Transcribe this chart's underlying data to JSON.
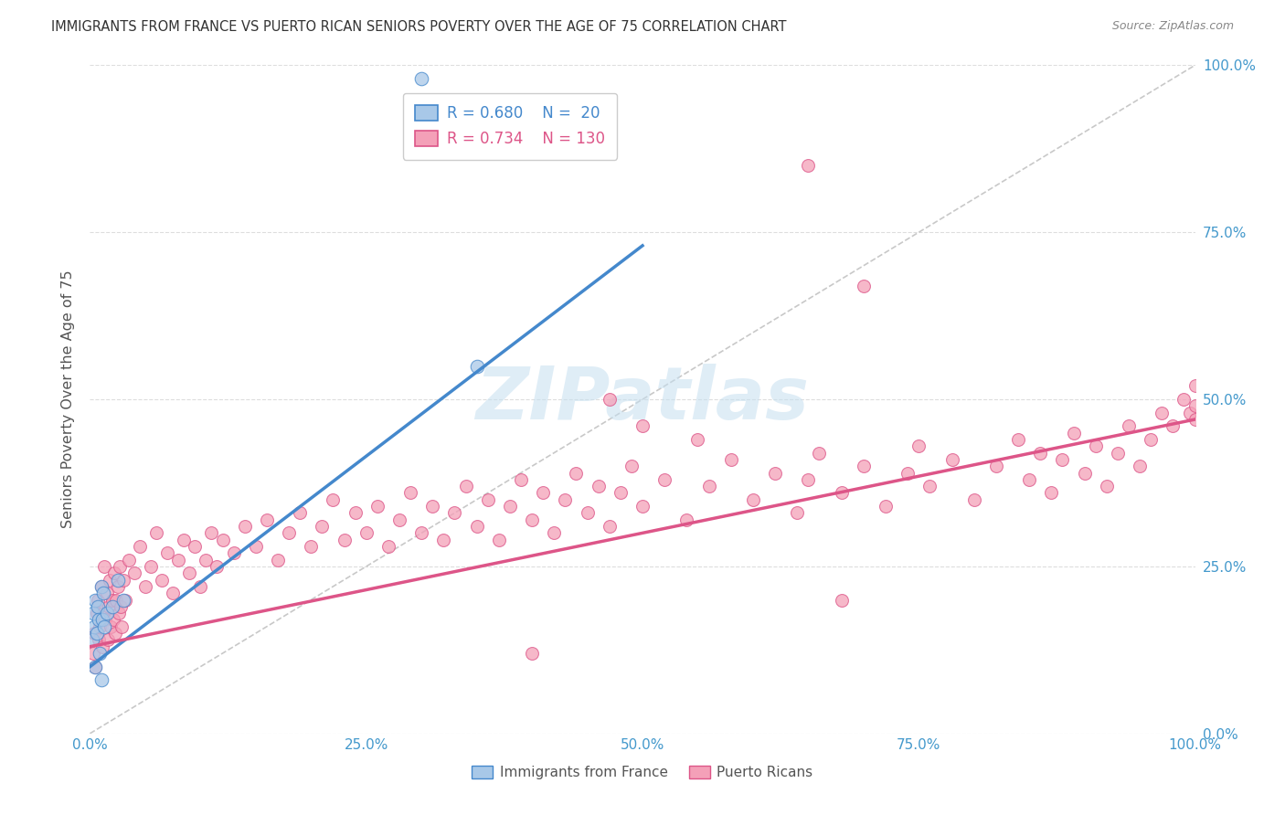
{
  "title": "IMMIGRANTS FROM FRANCE VS PUERTO RICAN SENIORS POVERTY OVER THE AGE OF 75 CORRELATION CHART",
  "source": "Source: ZipAtlas.com",
  "ylabel": "Seniors Poverty Over the Age of 75",
  "legend_label_blue": "Immigrants from France",
  "legend_label_pink": "Puerto Ricans",
  "R_blue": 0.68,
  "N_blue": 20,
  "R_pink": 0.734,
  "N_pink": 130,
  "color_blue": "#a8c8e8",
  "color_pink": "#f4a0b8",
  "line_color_blue": "#4488cc",
  "line_color_pink": "#dd5588",
  "axis_label_color": "#4499cc",
  "title_color": "#333333",
  "grid_color": "#dddddd",
  "background_color": "#ffffff",
  "blue_line": [
    0.0,
    10.0,
    50.0,
    73.0
  ],
  "pink_line": [
    0.0,
    13.0,
    100.0,
    47.0
  ],
  "diag_line": [
    0.0,
    0.0,
    100.0,
    100.0
  ],
  "blue_x": [
    0.2,
    0.3,
    0.4,
    0.5,
    0.5,
    0.6,
    0.7,
    0.8,
    0.9,
    1.0,
    1.0,
    1.1,
    1.2,
    1.3,
    1.5,
    2.0,
    2.5,
    3.0,
    30.0,
    35.0
  ],
  "blue_y": [
    14.0,
    18.0,
    16.0,
    20.0,
    10.0,
    15.0,
    19.0,
    17.0,
    12.0,
    22.0,
    8.0,
    17.0,
    21.0,
    16.0,
    18.0,
    19.0,
    23.0,
    20.0,
    98.0,
    55.0
  ],
  "pink_x": [
    0.3,
    0.4,
    0.5,
    0.6,
    0.7,
    0.8,
    0.9,
    1.0,
    1.1,
    1.2,
    1.3,
    1.4,
    1.5,
    1.6,
    1.7,
    1.8,
    1.9,
    2.0,
    2.1,
    2.2,
    2.3,
    2.4,
    2.5,
    2.6,
    2.7,
    2.8,
    2.9,
    3.0,
    3.2,
    3.5,
    4.0,
    4.5,
    5.0,
    5.5,
    6.0,
    6.5,
    7.0,
    7.5,
    8.0,
    8.5,
    9.0,
    9.5,
    10.0,
    10.5,
    11.0,
    11.5,
    12.0,
    13.0,
    14.0,
    15.0,
    16.0,
    17.0,
    18.0,
    19.0,
    20.0,
    21.0,
    22.0,
    23.0,
    24.0,
    25.0,
    26.0,
    27.0,
    28.0,
    29.0,
    30.0,
    31.0,
    32.0,
    33.0,
    34.0,
    35.0,
    36.0,
    37.0,
    38.0,
    39.0,
    40.0,
    41.0,
    42.0,
    43.0,
    44.0,
    45.0,
    46.0,
    47.0,
    48.0,
    49.0,
    50.0,
    52.0,
    54.0,
    56.0,
    58.0,
    60.0,
    62.0,
    64.0,
    65.0,
    66.0,
    68.0,
    70.0,
    72.0,
    74.0,
    75.0,
    76.0,
    78.0,
    80.0,
    82.0,
    84.0,
    85.0,
    86.0,
    87.0,
    88.0,
    89.0,
    90.0,
    91.0,
    92.0,
    93.0,
    94.0,
    95.0,
    96.0,
    97.0,
    98.0,
    99.0,
    99.5,
    100.0,
    100.0,
    100.0,
    65.0,
    68.0,
    70.0,
    40.0,
    47.0,
    50.0,
    55.0
  ],
  "pink_y": [
    12.0,
    15.0,
    10.0,
    18.0,
    20.0,
    14.0,
    16.0,
    22.0,
    13.0,
    18.0,
    25.0,
    17.0,
    21.0,
    14.0,
    19.0,
    23.0,
    16.0,
    20.0,
    17.0,
    24.0,
    15.0,
    20.0,
    22.0,
    18.0,
    25.0,
    19.0,
    16.0,
    23.0,
    20.0,
    26.0,
    24.0,
    28.0,
    22.0,
    25.0,
    30.0,
    23.0,
    27.0,
    21.0,
    26.0,
    29.0,
    24.0,
    28.0,
    22.0,
    26.0,
    30.0,
    25.0,
    29.0,
    27.0,
    31.0,
    28.0,
    32.0,
    26.0,
    30.0,
    33.0,
    28.0,
    31.0,
    35.0,
    29.0,
    33.0,
    30.0,
    34.0,
    28.0,
    32.0,
    36.0,
    30.0,
    34.0,
    29.0,
    33.0,
    37.0,
    31.0,
    35.0,
    29.0,
    34.0,
    38.0,
    32.0,
    36.0,
    30.0,
    35.0,
    39.0,
    33.0,
    37.0,
    31.0,
    36.0,
    40.0,
    34.0,
    38.0,
    32.0,
    37.0,
    41.0,
    35.0,
    39.0,
    33.0,
    38.0,
    42.0,
    36.0,
    40.0,
    34.0,
    39.0,
    43.0,
    37.0,
    41.0,
    35.0,
    40.0,
    44.0,
    38.0,
    42.0,
    36.0,
    41.0,
    45.0,
    39.0,
    43.0,
    37.0,
    42.0,
    46.0,
    40.0,
    44.0,
    48.0,
    46.0,
    50.0,
    48.0,
    47.0,
    52.0,
    49.0,
    85.0,
    20.0,
    67.0,
    12.0,
    50.0,
    46.0,
    44.0
  ]
}
